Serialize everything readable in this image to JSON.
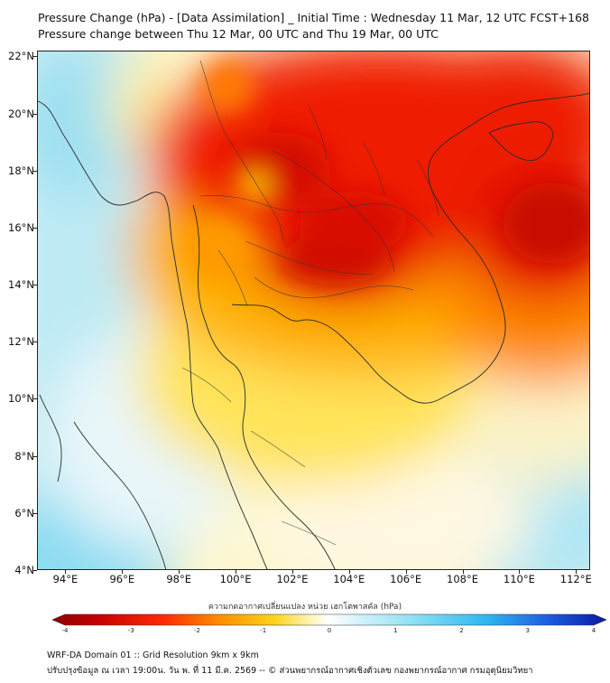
{
  "title_line1": "Pressure Change (hPa) - [Data Assimilation] _ Initial Time : Wednesday 11 Mar, 12 UTC FCST+168",
  "title_line2": "Pressure change between Thu 12 Mar, 00 UTC and Thu 19 Mar, 00 UTC",
  "map": {
    "lon_range": [
      93,
      112.5
    ],
    "lat_range": [
      4,
      22.2
    ],
    "lat_ticks": [
      "22°N",
      "20°N",
      "18°N",
      "16°N",
      "14°N",
      "12°N",
      "10°N",
      "8°N",
      "6°N",
      "4°N"
    ],
    "lat_tick_values": [
      22,
      20,
      18,
      16,
      14,
      12,
      10,
      8,
      6,
      4
    ],
    "lon_ticks": [
      "94°E",
      "96°E",
      "98°E",
      "100°E",
      "102°E",
      "104°E",
      "106°E",
      "108°E",
      "110°E",
      "112°E"
    ],
    "lon_tick_values": [
      94,
      96,
      98,
      100,
      102,
      104,
      106,
      108,
      110,
      112
    ],
    "field": "pressure change (hPa)",
    "colors": {
      "strong_fall": "#c40000",
      "fall": "#ff3a00",
      "weak_fall": "#ffd21a",
      "neutral": "#ffffff",
      "rise": "#8fe0f5",
      "strong_rise": "#1a3fd6"
    }
  },
  "colorbar": {
    "title": "ความกดอากาศเปลี่ยนแปลง หน่วย เฮกโตพาสคัล (hPa)",
    "labels": [
      "-4",
      "-3",
      "-2",
      "-1",
      "0",
      "1",
      "2",
      "3",
      "4"
    ],
    "range": [
      -4,
      4
    ]
  },
  "footer": {
    "line1": "WRF-DA Domain 01 :: Grid Resolution 9km x 9km",
    "line2": "ปรับปรุงข้อมูล ณ เวลา 19:00น. วัน พ. ที่ 11 มี.ค. 2569 -- © ส่วนพยากรณ์อากาศเชิงตัวเลข กองพยากรณ์อากาศ กรมอุตุนิยมวิทยา"
  }
}
